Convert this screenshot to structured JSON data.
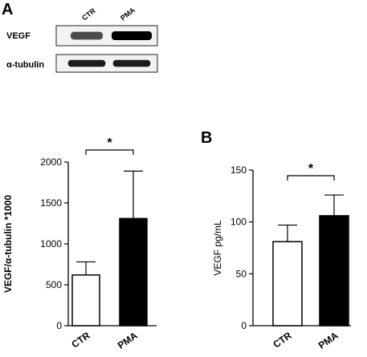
{
  "panels": {
    "a_label": "A",
    "b_label": "B"
  },
  "blot": {
    "lanes": [
      "CTR",
      "PMA"
    ],
    "rows": [
      {
        "label": "VEGF",
        "band_intensity": [
          0.55,
          1.0
        ]
      },
      {
        "label": "α-tubulin",
        "band_intensity": [
          0.85,
          0.85
        ]
      }
    ]
  },
  "chart_data": [
    {
      "type": "bar",
      "categories": [
        "CTR",
        "PMA"
      ],
      "values": [
        620,
        1310
      ],
      "errors": [
        160,
        580
      ],
      "fills": [
        "#ffffff",
        "#000000"
      ],
      "ylabel": "VEGF/α-tubulin *1000",
      "ylim": [
        0,
        2000
      ],
      "yticks": [
        0,
        500,
        1000,
        1500,
        2000
      ],
      "significance": "*",
      "grid": false
    },
    {
      "type": "bar",
      "categories": [
        "CTR",
        "PMA"
      ],
      "values": [
        81,
        106
      ],
      "errors": [
        16,
        20
      ],
      "fills": [
        "#ffffff",
        "#000000"
      ],
      "ylabel": "VEGF pg/mL",
      "ylim": [
        0,
        150
      ],
      "yticks": [
        0,
        50,
        100,
        150
      ],
      "significance": "*",
      "grid": false
    }
  ]
}
